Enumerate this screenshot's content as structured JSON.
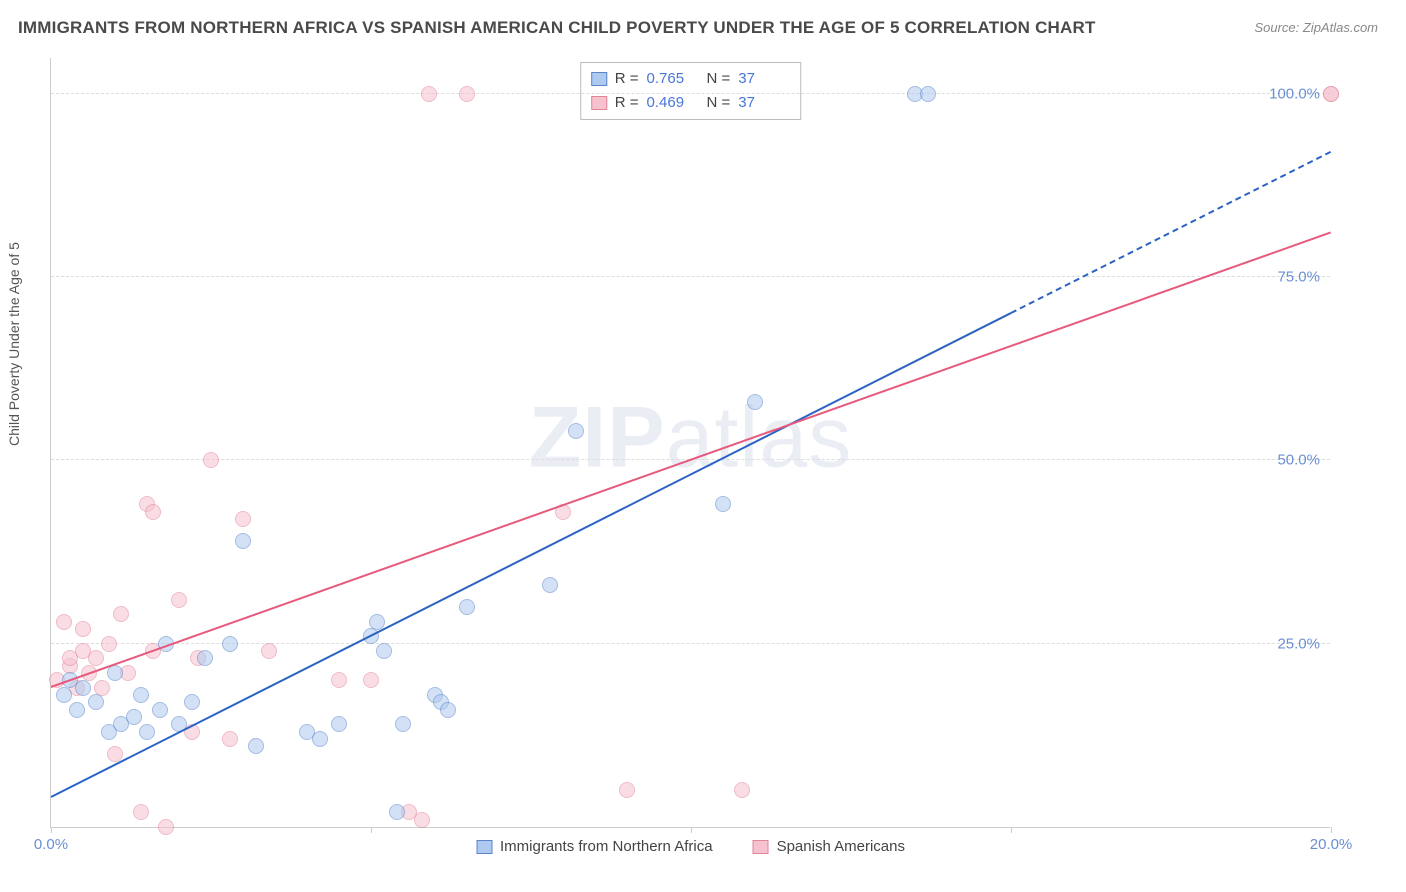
{
  "title": "IMMIGRANTS FROM NORTHERN AFRICA VS SPANISH AMERICAN CHILD POVERTY UNDER THE AGE OF 5 CORRELATION CHART",
  "source": "Source: ZipAtlas.com",
  "watermark": "ZIPatlas",
  "ylabel": "Child Poverty Under the Age of 5",
  "chart": {
    "type": "scatter",
    "xlim": [
      0,
      20
    ],
    "ylim": [
      0,
      105
    ],
    "x_ticks": [
      0,
      5,
      10,
      15,
      20
    ],
    "x_tick_labels": [
      "0.0%",
      "",
      "",
      "",
      "20.0%"
    ],
    "y_ticks": [
      25,
      50,
      75,
      100
    ],
    "y_tick_labels": [
      "25.0%",
      "50.0%",
      "75.0%",
      "100.0%"
    ],
    "grid_color": "#dddddd",
    "axis_color": "#cccccc",
    "tick_font_color": "#6a8fd4",
    "tick_font_size": 15,
    "label_font_color": "#555555",
    "label_font_size": 14,
    "background_color": "#ffffff",
    "marker_radius": 8,
    "marker_opacity": 0.55
  },
  "series": {
    "blue": {
      "name": "Immigrants from Northern Africa",
      "fill": "#aecaf0",
      "stroke": "#5a86c9",
      "line_color": "#2a63c4",
      "R": "0.765",
      "N": "37",
      "trend": {
        "x1": 0,
        "y1": 4,
        "x2": 15,
        "y2": 70,
        "dash_to_x": 20,
        "dash_to_y": 92
      },
      "points": [
        [
          0.2,
          18
        ],
        [
          0.3,
          20
        ],
        [
          0.4,
          16
        ],
        [
          0.5,
          19
        ],
        [
          0.7,
          17
        ],
        [
          0.9,
          13
        ],
        [
          1.0,
          21
        ],
        [
          1.1,
          14
        ],
        [
          1.3,
          15
        ],
        [
          1.4,
          18
        ],
        [
          1.5,
          13
        ],
        [
          1.7,
          16
        ],
        [
          1.8,
          25
        ],
        [
          2.0,
          14
        ],
        [
          2.2,
          17
        ],
        [
          2.4,
          23
        ],
        [
          2.8,
          25
        ],
        [
          3.0,
          39
        ],
        [
          3.2,
          11
        ],
        [
          4.0,
          13
        ],
        [
          4.2,
          12
        ],
        [
          4.5,
          14
        ],
        [
          5.0,
          26
        ],
        [
          5.1,
          28
        ],
        [
          5.2,
          24
        ],
        [
          5.4,
          2
        ],
        [
          5.5,
          14
        ],
        [
          6.0,
          18
        ],
        [
          6.1,
          17
        ],
        [
          6.2,
          16
        ],
        [
          6.5,
          30
        ],
        [
          7.8,
          33
        ],
        [
          8.2,
          54
        ],
        [
          10.5,
          44
        ],
        [
          11.0,
          58
        ],
        [
          13.5,
          100
        ],
        [
          13.7,
          100
        ]
      ]
    },
    "pink": {
      "name": "Spanish Americans",
      "fill": "#f6c2cf",
      "stroke": "#e28597",
      "line_color": "#e65a7d",
      "R": "0.469",
      "N": "37",
      "trend": {
        "x1": 0,
        "y1": 19,
        "x2": 20,
        "y2": 81
      },
      "points": [
        [
          0.1,
          20
        ],
        [
          0.2,
          28
        ],
        [
          0.3,
          22
        ],
        [
          0.3,
          23
        ],
        [
          0.4,
          19
        ],
        [
          0.5,
          27
        ],
        [
          0.5,
          24
        ],
        [
          0.6,
          21
        ],
        [
          0.7,
          23
        ],
        [
          0.8,
          19
        ],
        [
          0.9,
          25
        ],
        [
          1.0,
          10
        ],
        [
          1.1,
          29
        ],
        [
          1.2,
          21
        ],
        [
          1.4,
          2
        ],
        [
          1.5,
          44
        ],
        [
          1.6,
          43
        ],
        [
          1.6,
          24
        ],
        [
          1.8,
          0
        ],
        [
          2.0,
          31
        ],
        [
          2.2,
          13
        ],
        [
          2.3,
          23
        ],
        [
          2.5,
          50
        ],
        [
          2.8,
          12
        ],
        [
          3.0,
          42
        ],
        [
          3.4,
          24
        ],
        [
          4.5,
          20
        ],
        [
          5.0,
          20
        ],
        [
          5.6,
          2
        ],
        [
          5.8,
          1
        ],
        [
          5.9,
          100
        ],
        [
          6.5,
          100
        ],
        [
          8.0,
          43
        ],
        [
          9.0,
          5
        ],
        [
          10.8,
          5
        ],
        [
          20.0,
          100
        ],
        [
          20.0,
          100
        ]
      ]
    }
  },
  "stat_box": {
    "rows": [
      {
        "swatch": "blue",
        "r_label": "R =",
        "r_val": "0.765",
        "n_label": "N =",
        "n_val": "37"
      },
      {
        "swatch": "pink",
        "r_label": "R =",
        "r_val": "0.469",
        "n_label": "N =",
        "n_val": "37"
      }
    ]
  },
  "bottom_legend": [
    {
      "swatch": "blue",
      "label": "Immigrants from Northern Africa"
    },
    {
      "swatch": "pink",
      "label": "Spanish Americans"
    }
  ]
}
